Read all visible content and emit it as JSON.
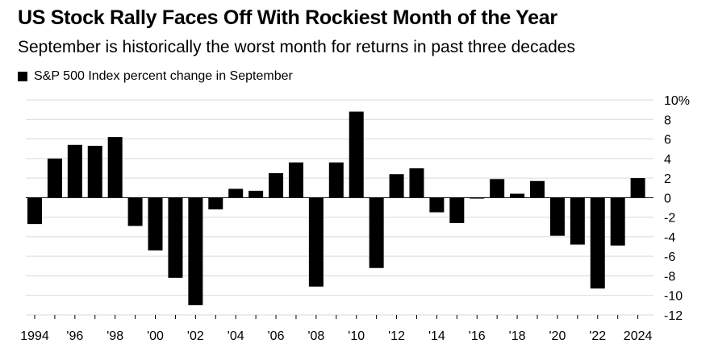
{
  "header": {
    "title": "US Stock Rally Faces Off With Rockiest Month of the Year",
    "subtitle": "September is historically the worst month for returns in past three decades"
  },
  "chart_data": {
    "type": "bar",
    "title": "US Stock Rally Faces Off With Rockiest Month of the Year",
    "subtitle": "September is historically the worst month for returns in past three decades",
    "legend": [
      {
        "name": "S&P 500 Index percent change in September",
        "color": "#000000",
        "placement": "top-left"
      }
    ],
    "xlabel": "",
    "ylabel": "",
    "ylim": [
      -12,
      10
    ],
    "grid": true,
    "bar_color": "#000000",
    "categories": [
      1994,
      1995,
      1996,
      1997,
      1998,
      1999,
      2000,
      2001,
      2002,
      2003,
      2004,
      2005,
      2006,
      2007,
      2008,
      2009,
      2010,
      2011,
      2012,
      2013,
      2014,
      2015,
      2016,
      2017,
      2018,
      2019,
      2020,
      2021,
      2022,
      2023,
      2024
    ],
    "values": [
      -2.7,
      4.0,
      5.4,
      5.3,
      6.2,
      -2.9,
      -5.4,
      -8.2,
      -11.0,
      -1.2,
      0.9,
      0.7,
      2.5,
      3.6,
      -9.1,
      3.6,
      8.8,
      -7.2,
      2.4,
      3.0,
      -1.5,
      -2.6,
      -0.1,
      1.9,
      0.4,
      1.7,
      -3.9,
      -4.8,
      -9.3,
      -4.9,
      2.0
    ],
    "x_tick_labels": [
      {
        "year": 1994,
        "label": "1994"
      },
      {
        "year": 1996,
        "label": "'96"
      },
      {
        "year": 1998,
        "label": "'98"
      },
      {
        "year": 2000,
        "label": "'00"
      },
      {
        "year": 2002,
        "label": "'02"
      },
      {
        "year": 2004,
        "label": "'04"
      },
      {
        "year": 2006,
        "label": "'06"
      },
      {
        "year": 2008,
        "label": "'08"
      },
      {
        "year": 2010,
        "label": "'10"
      },
      {
        "year": 2012,
        "label": "'12"
      },
      {
        "year": 2014,
        "label": "'14"
      },
      {
        "year": 2016,
        "label": "'16"
      },
      {
        "year": 2018,
        "label": "'18"
      },
      {
        "year": 2020,
        "label": "'20"
      },
      {
        "year": 2022,
        "label": "'22"
      },
      {
        "year": 2024,
        "label": "2024"
      }
    ],
    "y_ticks": [
      {
        "value": 10,
        "label": "10%"
      },
      {
        "value": 8,
        "label": "8"
      },
      {
        "value": 6,
        "label": "6"
      },
      {
        "value": 4,
        "label": "4"
      },
      {
        "value": 2,
        "label": "2"
      },
      {
        "value": 0,
        "label": "0"
      },
      {
        "value": -2,
        "label": "-2"
      },
      {
        "value": -4,
        "label": "-4"
      },
      {
        "value": -6,
        "label": "-6"
      },
      {
        "value": -8,
        "label": "-8"
      },
      {
        "value": -10,
        "label": "-10"
      },
      {
        "value": -12,
        "label": "-12"
      }
    ]
  }
}
